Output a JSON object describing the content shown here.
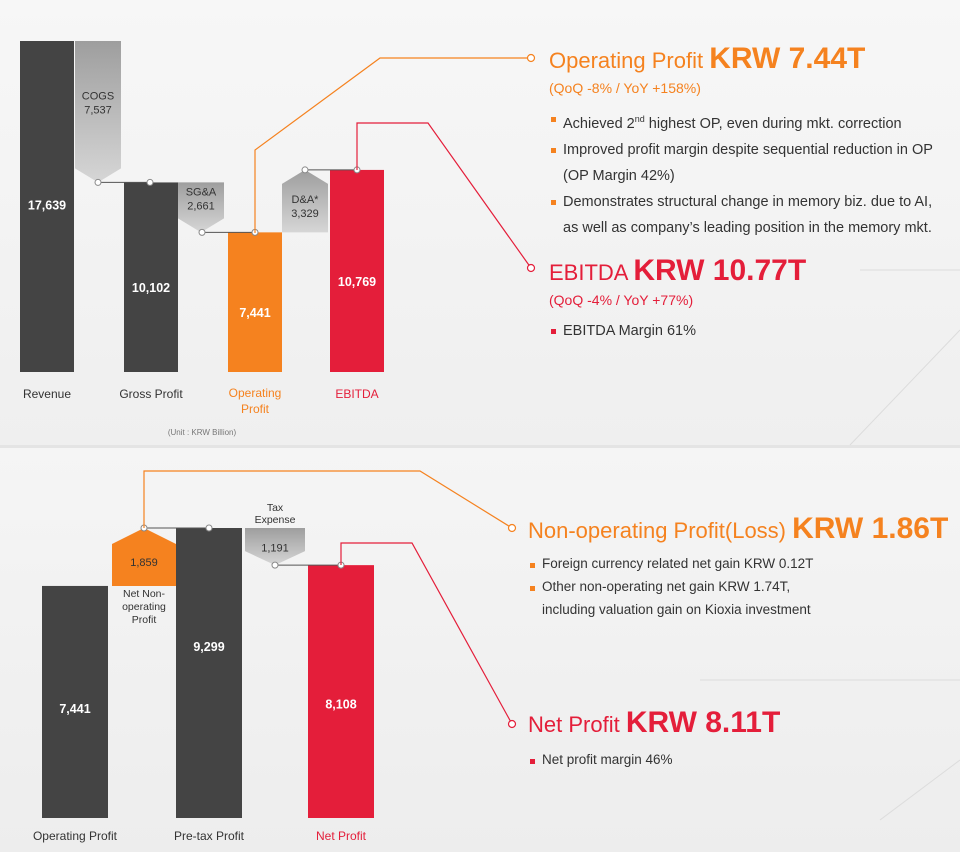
{
  "chart_data": [
    {
      "type": "bar",
      "subtype": "waterfall",
      "categories": [
        "Revenue",
        "Gross Profit",
        "Operating\nProfit",
        "EBITDA"
      ],
      "totals": [
        17639,
        10102,
        7441,
        10769
      ],
      "total_labels": [
        "17,639",
        "10,102",
        "7,441",
        "10,769"
      ],
      "steps": [
        {
          "name": "COGS",
          "value": -7537,
          "label": "7,537",
          "between": [
            0,
            1
          ]
        },
        {
          "name": "SG&A",
          "value": -2661,
          "label": "2,661",
          "between": [
            1,
            2
          ]
        },
        {
          "name": "D&A*",
          "value": 3329,
          "label": "3,329",
          "between": [
            2,
            3
          ]
        }
      ],
      "unit_note": "(Unit : KRW Billion)",
      "ylim": [
        0,
        17639
      ]
    },
    {
      "type": "bar",
      "subtype": "waterfall",
      "categories": [
        "Operating Profit",
        "Pre-tax Profit",
        "Net Profit"
      ],
      "totals": [
        7441,
        9299,
        8108
      ],
      "total_labels": [
        "7,441",
        "9,299",
        "8,108"
      ],
      "steps": [
        {
          "name": "Net Non-\noperating\nProfit",
          "value": 1859,
          "label": "1,859",
          "between": [
            0,
            1
          ]
        },
        {
          "name": "Tax\nExpense",
          "value": -1191,
          "label": "1,191",
          "between": [
            1,
            2
          ]
        }
      ],
      "ylim": [
        0,
        9299
      ]
    }
  ],
  "colors": {
    "dark_bar": "#444444",
    "orange": "#f5821f",
    "red": "#e41e3a",
    "step_gray": "#b4b4b4"
  },
  "callouts": {
    "op": {
      "title_small": "Operating Profit ",
      "title_big": "KRW 7.44T",
      "sub": "(QoQ -8% / YoY +158%)",
      "bullets": [
        {
          "pre": "Achieved 2",
          "sup": "nd",
          "post": " highest OP, even during mkt. correction"
        },
        {
          "pre": "Improved profit margin despite sequential reduction in OP",
          "sup": "",
          "post": ""
        },
        {
          "pre": "(OP Margin 42%)",
          "sup": "",
          "post": "",
          "cont": true
        },
        {
          "pre": "Demonstrates structural change in memory biz. due to AI,",
          "sup": "",
          "post": ""
        },
        {
          "pre": "as well as company’s leading position in the memory mkt.",
          "sup": "",
          "post": "",
          "cont": true
        }
      ]
    },
    "ebitda": {
      "title_small": "EBITDA ",
      "title_big": "KRW 10.77T",
      "sub": "(QoQ -4% / YoY +77%)",
      "bullets": [
        "EBITDA Margin 61%"
      ]
    },
    "nonop": {
      "title_small": "Non-operating Profit(Loss) ",
      "title_big": "KRW 1.86T",
      "bullets": [
        {
          "text": "Foreign currency related net gain KRW 0.12T"
        },
        {
          "text": "Other non-operating net gain KRW 1.74T,"
        },
        {
          "text": "including valuation gain on Kioxia investment",
          "cont": true
        }
      ]
    },
    "net": {
      "title_small": "Net Profit ",
      "title_big": "KRW 8.11T",
      "bullets": [
        "Net profit margin 46%"
      ]
    }
  }
}
